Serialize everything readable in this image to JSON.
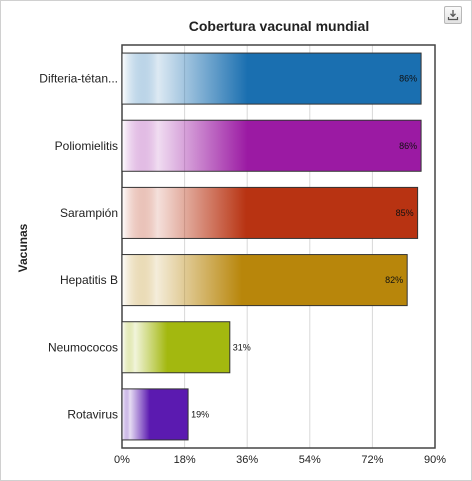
{
  "chart_data": {
    "type": "bar",
    "orientation": "horizontal",
    "title": "Cobertura vacunal mundial",
    "ylabel": "Vacunas",
    "xlabel": "",
    "categories": [
      "Difteria-tétan...",
      "Poliomielitis",
      "Sarampión",
      "Hepatitis B",
      "Neumococos",
      "Rotavirus"
    ],
    "values": [
      86,
      86,
      85,
      82,
      31,
      19
    ],
    "value_labels": [
      "86%",
      "86%",
      "85%",
      "82%",
      "31%",
      "19%"
    ],
    "colors": [
      "#1a6fb0",
      "#9b1aa3",
      "#b83312",
      "#b8860b",
      "#a3b80f",
      "#5b1ab0"
    ],
    "xlim": [
      0,
      90
    ],
    "x_ticks": [
      0,
      18,
      36,
      54,
      72,
      90
    ],
    "x_tick_labels": [
      "0%",
      "18%",
      "36%",
      "54%",
      "72%",
      "90%"
    ],
    "grid": true,
    "legend": "none"
  },
  "toolbar": {
    "export_icon": "download-icon"
  }
}
